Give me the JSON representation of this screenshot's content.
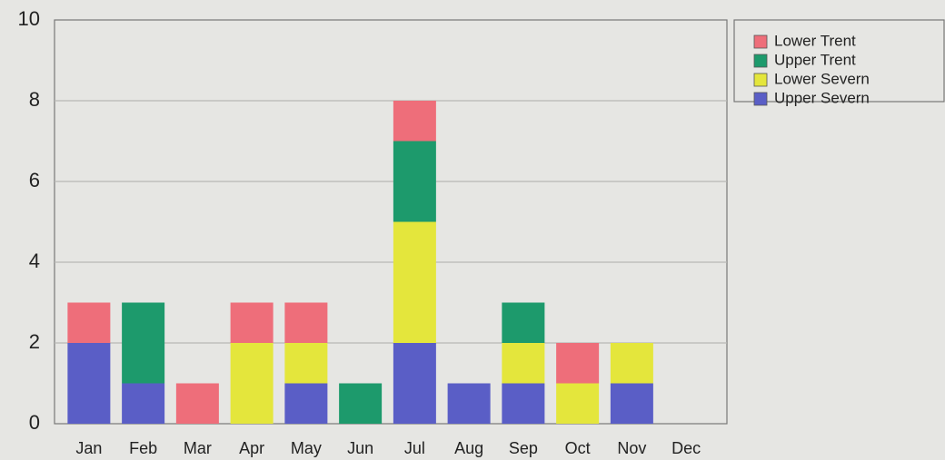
{
  "chart_data": {
    "type": "bar",
    "stacked": true,
    "categories": [
      "Jan",
      "Feb",
      "Mar",
      "Apr",
      "May",
      "Jun",
      "Jul",
      "Aug",
      "Sep",
      "Oct",
      "Nov",
      "Dec"
    ],
    "series": [
      {
        "name": "Upper Severn",
        "color": "#5a5ec6",
        "values": [
          2,
          1,
          0,
          0,
          1,
          0,
          2,
          1,
          1,
          0,
          1,
          0
        ]
      },
      {
        "name": "Lower Severn",
        "color": "#e4e63c",
        "values": [
          0,
          0,
          0,
          2,
          1,
          0,
          3,
          0,
          1,
          1,
          1,
          0
        ]
      },
      {
        "name": "Upper Trent",
        "color": "#1d9a6c",
        "values": [
          0,
          2,
          0,
          0,
          0,
          1,
          2,
          0,
          1,
          0,
          0,
          0
        ]
      },
      {
        "name": "Lower Trent",
        "color": "#ee6e7a",
        "values": [
          1,
          0,
          1,
          1,
          1,
          0,
          1,
          0,
          0,
          1,
          0,
          0
        ]
      }
    ],
    "ylim": [
      0,
      10
    ],
    "yticks": [
      0,
      2,
      4,
      6,
      8,
      10
    ],
    "grid": true,
    "legend": "right"
  }
}
